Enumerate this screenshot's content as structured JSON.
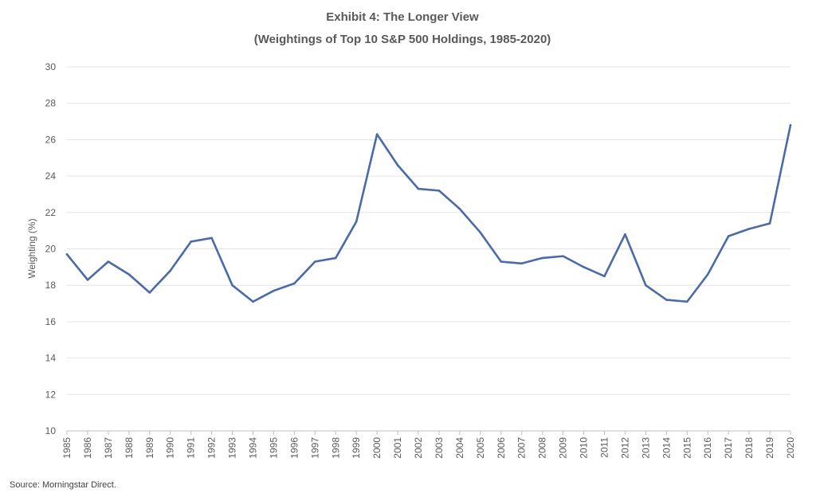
{
  "chart_data": {
    "type": "line",
    "title": "Exhibit 4: The Longer View",
    "subtitle": "(Weightings of Top 10 S&P 500 Holdings, 1985-2020)",
    "xlabel": "",
    "ylabel": "Weighting (%)",
    "ylim": [
      10,
      30
    ],
    "yticks": [
      10,
      12,
      14,
      16,
      18,
      20,
      22,
      24,
      26,
      28,
      30
    ],
    "grid": true,
    "categories": [
      "1985",
      "1986",
      "1987",
      "1988",
      "1989",
      "1990",
      "1991",
      "1992",
      "1993",
      "1994",
      "1995",
      "1996",
      "1997",
      "1998",
      "1999",
      "2000",
      "2001",
      "2002",
      "2003",
      "2004",
      "2005",
      "2006",
      "2007",
      "2008",
      "2009",
      "2010",
      "2011",
      "2012",
      "2013",
      "2014",
      "2015",
      "2016",
      "2017",
      "2018",
      "2019",
      "2020"
    ],
    "series": [
      {
        "color": "#4a6aa8",
        "values": [
          19.7,
          18.3,
          19.3,
          18.6,
          17.6,
          18.8,
          20.4,
          20.6,
          18.0,
          17.1,
          17.7,
          18.1,
          19.3,
          19.5,
          21.5,
          26.3,
          24.6,
          23.3,
          23.2,
          22.2,
          20.9,
          19.3,
          19.2,
          19.5,
          19.6,
          19.0,
          18.5,
          20.8,
          18.0,
          17.2,
          17.1,
          18.6,
          20.7,
          21.1,
          21.4,
          26.8
        ]
      }
    ],
    "source": "Source: Morningstar Direct."
  }
}
